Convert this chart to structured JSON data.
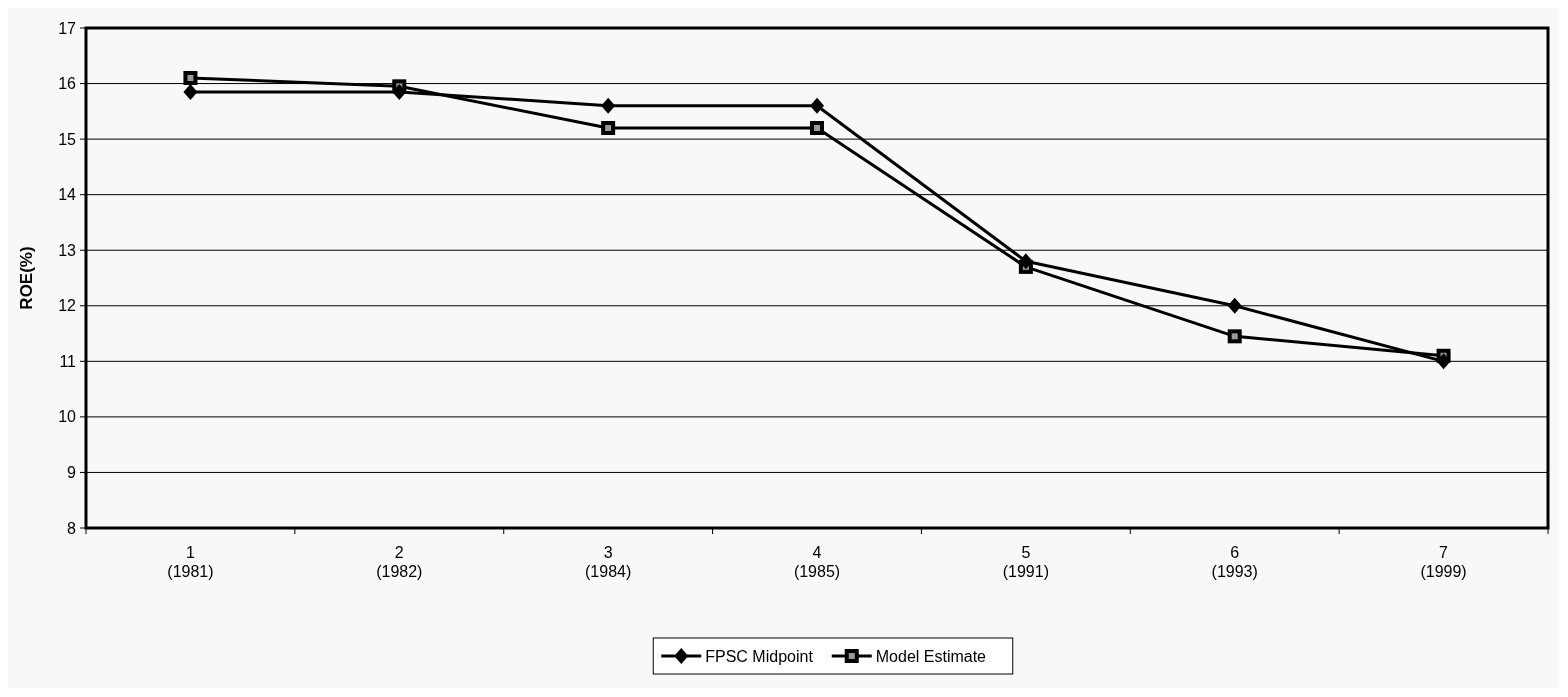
{
  "chart_data": {
    "type": "line",
    "ylabel": "ROE(%)",
    "categories": [
      "1\n(1981)",
      "2\n(1982)",
      "3\n(1984)",
      "4\n(1985)",
      "5\n(1991)",
      "6\n(1993)",
      "7\n(1999)"
    ],
    "series": [
      {
        "name": "FPSC Midpoint",
        "color": "#000000",
        "marker": "diamond",
        "values": [
          15.85,
          15.85,
          15.6,
          15.6,
          12.8,
          12.0,
          11.0
        ]
      },
      {
        "name": "Model Estimate",
        "color": "#000000",
        "marker": "square",
        "values": [
          16.1,
          15.95,
          15.2,
          15.2,
          12.7,
          11.45,
          11.1
        ]
      }
    ],
    "ylim": [
      8,
      17
    ],
    "yticks": [
      8,
      9,
      10,
      11,
      12,
      13,
      14,
      15,
      16,
      17
    ],
    "grid": "y",
    "legend": "bottom",
    "line_style": "solid"
  }
}
